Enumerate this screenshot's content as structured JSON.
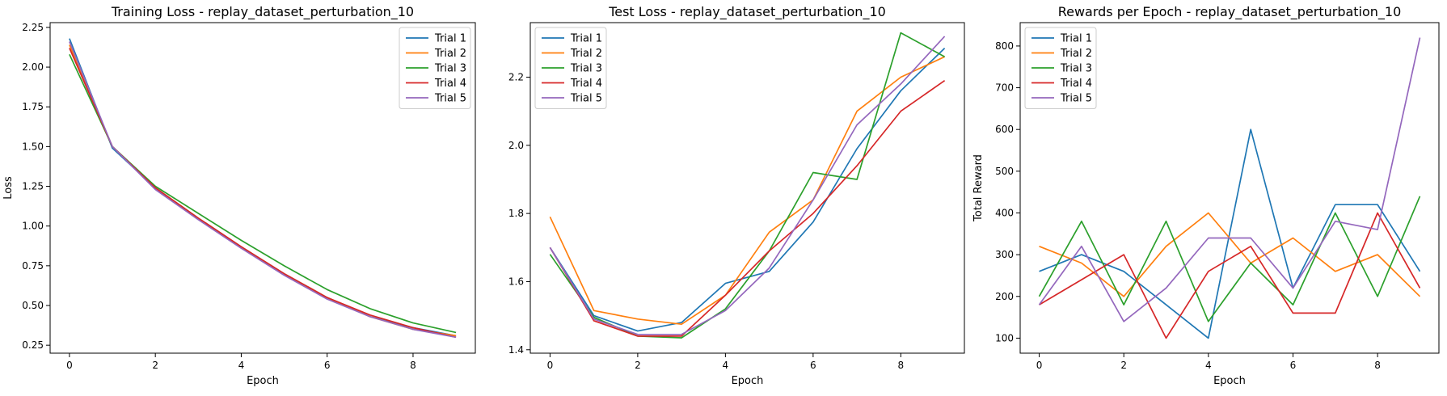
{
  "chart_data": [
    {
      "type": "line",
      "title": "Training Loss - replay_dataset_perturbation_10",
      "xlabel": "Epoch",
      "ylabel": "Loss",
      "x": [
        0,
        1,
        2,
        3,
        4,
        5,
        6,
        7,
        8,
        9
      ],
      "xlim": [
        -0.45,
        9.45
      ],
      "ylim": [
        0.2,
        2.28
      ],
      "xticks": [
        0,
        2,
        4,
        6,
        8
      ],
      "yticks": [
        0.25,
        0.5,
        0.75,
        1.0,
        1.25,
        1.5,
        1.75,
        2.0,
        2.25
      ],
      "ytick_labels": [
        "0.25",
        "0.50",
        "0.75",
        "1.00",
        "1.25",
        "1.50",
        "1.75",
        "2.00",
        "2.25"
      ],
      "legend": "upper right",
      "series": [
        {
          "name": "Trial 1",
          "color": "#1f77b4",
          "values": [
            2.18,
            1.49,
            1.24,
            1.05,
            0.87,
            0.7,
            0.55,
            0.43,
            0.36,
            0.31
          ]
        },
        {
          "name": "Trial 2",
          "color": "#ff7f0e",
          "values": [
            2.14,
            1.5,
            1.24,
            1.05,
            0.87,
            0.7,
            0.55,
            0.43,
            0.35,
            0.31
          ]
        },
        {
          "name": "Trial 3",
          "color": "#2ca02c",
          "values": [
            2.08,
            1.5,
            1.25,
            1.08,
            0.91,
            0.75,
            0.6,
            0.48,
            0.39,
            0.33
          ]
        },
        {
          "name": "Trial 4",
          "color": "#d62728",
          "values": [
            2.12,
            1.5,
            1.24,
            1.05,
            0.87,
            0.7,
            0.55,
            0.44,
            0.36,
            0.3
          ]
        },
        {
          "name": "Trial 5",
          "color": "#9467bd",
          "values": [
            2.16,
            1.5,
            1.23,
            1.04,
            0.86,
            0.69,
            0.54,
            0.43,
            0.35,
            0.3
          ]
        }
      ]
    },
    {
      "type": "line",
      "title": "Test Loss - replay_dataset_perturbation_10",
      "xlabel": "Epoch",
      "ylabel": "",
      "x": [
        0,
        1,
        2,
        3,
        4,
        5,
        6,
        7,
        8,
        9
      ],
      "xlim": [
        -0.45,
        9.45
      ],
      "ylim": [
        1.39,
        2.36
      ],
      "xticks": [
        0,
        2,
        4,
        6,
        8
      ],
      "yticks": [
        1.4,
        1.6,
        1.8,
        2.0,
        2.2
      ],
      "ytick_labels": [
        "1.4",
        "1.6",
        "1.8",
        "2.0",
        "2.2"
      ],
      "legend": "upper left",
      "series": [
        {
          "name": "Trial 1",
          "color": "#1f77b4",
          "values": [
            1.7,
            1.5,
            1.455,
            1.48,
            1.595,
            1.63,
            1.775,
            1.99,
            2.16,
            2.285
          ]
        },
        {
          "name": "Trial 2",
          "color": "#ff7f0e",
          "values": [
            1.79,
            1.515,
            1.49,
            1.475,
            1.56,
            1.745,
            1.84,
            2.1,
            2.2,
            2.26
          ]
        },
        {
          "name": "Trial 3",
          "color": "#2ca02c",
          "values": [
            1.68,
            1.495,
            1.44,
            1.435,
            1.52,
            1.69,
            1.92,
            1.9,
            2.33,
            2.26
          ]
        },
        {
          "name": "Trial 4",
          "color": "#d62728",
          "values": [
            1.7,
            1.485,
            1.44,
            1.44,
            1.56,
            1.69,
            1.8,
            1.94,
            2.1,
            2.19
          ]
        },
        {
          "name": "Trial 5",
          "color": "#9467bd",
          "values": [
            1.7,
            1.49,
            1.445,
            1.445,
            1.515,
            1.64,
            1.84,
            2.06,
            2.18,
            2.32
          ]
        }
      ]
    },
    {
      "type": "line",
      "title": "Rewards per Epoch - replay_dataset_perturbation_10",
      "xlabel": "Epoch",
      "ylabel": "Total Reward",
      "x": [
        0,
        1,
        2,
        3,
        4,
        5,
        6,
        7,
        8,
        9
      ],
      "xlim": [
        -0.45,
        9.45
      ],
      "ylim": [
        64,
        856
      ],
      "xticks": [
        0,
        2,
        4,
        6,
        8
      ],
      "yticks": [
        100,
        200,
        300,
        400,
        500,
        600,
        700,
        800
      ],
      "ytick_labels": [
        "100",
        "200",
        "300",
        "400",
        "500",
        "600",
        "700",
        "800"
      ],
      "legend": "upper left",
      "series": [
        {
          "name": "Trial 1",
          "color": "#1f77b4",
          "values": [
            260,
            300,
            260,
            180,
            100,
            600,
            220,
            420,
            420,
            260
          ]
        },
        {
          "name": "Trial 2",
          "color": "#ff7f0e",
          "values": [
            320,
            280,
            200,
            320,
            400,
            280,
            340,
            260,
            300,
            200
          ]
        },
        {
          "name": "Trial 3",
          "color": "#2ca02c",
          "values": [
            200,
            380,
            180,
            380,
            140,
            280,
            180,
            400,
            200,
            440
          ]
        },
        {
          "name": "Trial 4",
          "color": "#d62728",
          "values": [
            180,
            240,
            300,
            100,
            260,
            320,
            160,
            160,
            400,
            220
          ]
        },
        {
          "name": "Trial 5",
          "color": "#9467bd",
          "values": [
            180,
            320,
            140,
            220,
            340,
            340,
            220,
            380,
            360,
            820
          ]
        }
      ]
    }
  ]
}
